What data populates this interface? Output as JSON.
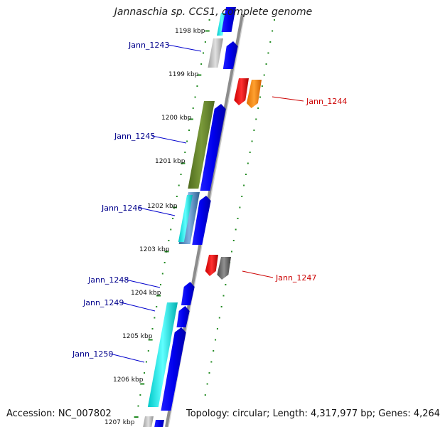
{
  "title": "Jannaschia sp. CCS1, complete genome",
  "accession_text": "Accession: NC_007802",
  "summary_text": "Topology: circular; Length: 4,317,977 bp; Genes: 4,264",
  "colors": {
    "minus_strand_label": "#00008b",
    "plus_strand_label": "#cc0000",
    "axis": "#8c8c8c",
    "tick": "#228b22"
  },
  "scale": {
    "labels": [
      "1198 kbp",
      "1199 kbp",
      "1200 kbp",
      "1201 kbp",
      "1202 kbp",
      "1203 kbp",
      "1204 kbp",
      "1205 kbp",
      "1206 kbp",
      "1207 kbp"
    ]
  },
  "genes": [
    {
      "label": "Jann_1243",
      "strand": "minus"
    },
    {
      "label": "Jann_1244",
      "strand": "plus"
    },
    {
      "label": "Jann_1245",
      "strand": "minus"
    },
    {
      "label": "Jann_1246",
      "strand": "minus"
    },
    {
      "label": "Jann_1247",
      "strand": "plus"
    },
    {
      "label": "Jann_1248",
      "strand": "minus"
    },
    {
      "label": "Jann_1249",
      "strand": "minus"
    },
    {
      "label": "Jann_1250",
      "strand": "minus"
    }
  ]
}
